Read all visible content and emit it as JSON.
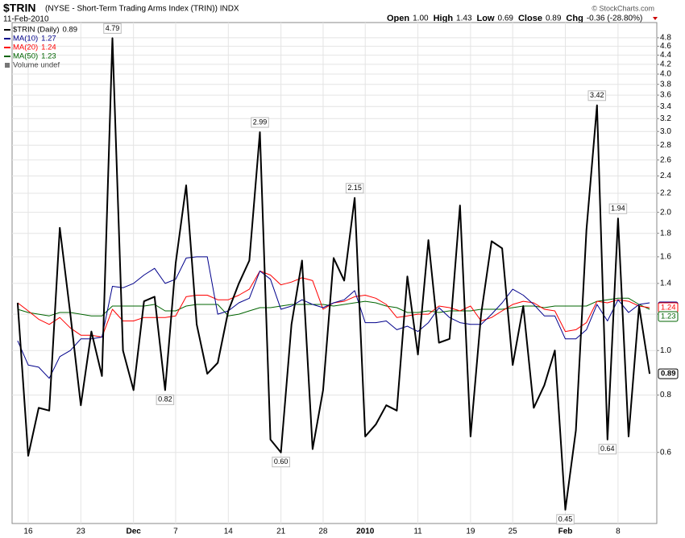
{
  "chart_data": {
    "type": "line",
    "title": "$TRIN",
    "subtitle": "(NYSE - Short-Term Trading Arms Index (TRIN)) INDX",
    "date": "11-Feb-2010",
    "quote": [
      {
        "label": "Open",
        "text": "1.00"
      },
      {
        "label": "High",
        "text": "1.43"
      },
      {
        "label": "Low",
        "text": "0.69"
      },
      {
        "label": "Close",
        "text": "0.89"
      },
      {
        "label": "Chg",
        "text": "-0.36 (-28.80%)"
      }
    ],
    "credit": "© StockCharts.com",
    "volume_legend": "Volume undef",
    "log_scale": true,
    "grid": true,
    "categories": [
      null,
      "16",
      null,
      null,
      null,
      null,
      "23",
      null,
      null,
      null,
      null,
      "Dec",
      null,
      null,
      null,
      "7",
      null,
      null,
      null,
      null,
      "14",
      null,
      null,
      null,
      null,
      "21",
      null,
      null,
      null,
      "28",
      null,
      null,
      null,
      "2010",
      null,
      null,
      null,
      null,
      "11",
      null,
      null,
      null,
      null,
      "19",
      null,
      null,
      null,
      "25",
      null,
      null,
      null,
      null,
      "Feb",
      null,
      null,
      null,
      null,
      "8",
      null,
      null,
      null
    ],
    "series": [
      {
        "name": "$TRIN (Daily)",
        "color": "#000000",
        "width": 2,
        "values": [
          1.27,
          0.59,
          0.75,
          0.74,
          1.85,
          1.2,
          0.76,
          1.1,
          0.88,
          4.79,
          1.0,
          0.82,
          1.28,
          1.31,
          0.82,
          1.55,
          2.29,
          1.14,
          0.89,
          0.94,
          1.22,
          1.4,
          1.57,
          2.99,
          0.64,
          0.6,
          1.14,
          1.57,
          0.61,
          0.82,
          1.59,
          1.42,
          2.15,
          0.65,
          0.69,
          0.76,
          0.74,
          1.45,
          0.98,
          1.74,
          1.04,
          1.06,
          2.07,
          0.65,
          1.2,
          1.73,
          1.67,
          0.93,
          1.25,
          0.75,
          0.84,
          1.0,
          0.45,
          0.67,
          1.83,
          3.42,
          0.64,
          1.94,
          0.65,
          1.25,
          0.89
        ],
        "value_labels": [
          null,
          null,
          null,
          null,
          null,
          null,
          null,
          null,
          null,
          "4.79",
          null,
          null,
          null,
          null,
          "0.82",
          null,
          null,
          null,
          null,
          null,
          null,
          null,
          null,
          "2.99",
          null,
          "0.60",
          null,
          null,
          null,
          null,
          null,
          null,
          "2.15",
          null,
          null,
          null,
          null,
          null,
          null,
          null,
          null,
          null,
          null,
          null,
          null,
          null,
          null,
          null,
          null,
          null,
          null,
          null,
          "0.45",
          null,
          null,
          "3.42",
          "0.64",
          "1.94",
          null,
          null,
          null
        ]
      },
      {
        "name": "MA(10)",
        "color": "#00008b",
        "width": 1,
        "values": [
          1.05,
          0.93,
          0.92,
          0.87,
          0.97,
          1.0,
          1.06,
          1.06,
          1.07,
          1.38,
          1.37,
          1.4,
          1.46,
          1.51,
          1.4,
          1.43,
          1.59,
          1.6,
          1.6,
          1.2,
          1.22,
          1.27,
          1.3,
          1.49,
          1.43,
          1.23,
          1.25,
          1.29,
          1.26,
          1.24,
          1.27,
          1.29,
          1.35,
          1.15,
          1.15,
          1.16,
          1.11,
          1.13,
          1.1,
          1.15,
          1.24,
          1.18,
          1.15,
          1.14,
          1.14,
          1.2,
          1.27,
          1.36,
          1.32,
          1.26,
          1.19,
          1.19,
          1.06,
          1.06,
          1.11,
          1.26,
          1.16,
          1.29,
          1.21,
          1.26,
          1.27
        ]
      },
      {
        "name": "MA(20)",
        "color": "#ff0000",
        "width": 1,
        "values": [
          1.27,
          1.22,
          1.17,
          1.14,
          1.18,
          1.12,
          1.08,
          1.08,
          1.07,
          1.23,
          1.16,
          1.16,
          1.18,
          1.18,
          1.18,
          1.19,
          1.31,
          1.32,
          1.32,
          1.29,
          1.29,
          1.32,
          1.36,
          1.49,
          1.46,
          1.39,
          1.41,
          1.44,
          1.42,
          1.23,
          1.27,
          1.28,
          1.31,
          1.32,
          1.3,
          1.26,
          1.18,
          1.19,
          1.2,
          1.2,
          1.25,
          1.24,
          1.22,
          1.25,
          1.16,
          1.18,
          1.22,
          1.26,
          1.28,
          1.27,
          1.23,
          1.22,
          1.1,
          1.11,
          1.15,
          1.28,
          1.27,
          1.29,
          1.28,
          1.25,
          1.24
        ]
      },
      {
        "name": "MA(50)",
        "color": "#006400",
        "width": 1,
        "values": [
          1.23,
          1.21,
          1.2,
          1.19,
          1.21,
          1.21,
          1.2,
          1.19,
          1.19,
          1.25,
          1.25,
          1.25,
          1.25,
          1.26,
          1.22,
          1.22,
          1.25,
          1.26,
          1.26,
          1.26,
          1.19,
          1.2,
          1.22,
          1.24,
          1.24,
          1.25,
          1.26,
          1.26,
          1.26,
          1.26,
          1.25,
          1.26,
          1.27,
          1.28,
          1.27,
          1.25,
          1.24,
          1.21,
          1.21,
          1.22,
          1.21,
          1.22,
          1.22,
          1.22,
          1.23,
          1.23,
          1.23,
          1.24,
          1.25,
          1.25,
          1.24,
          1.25,
          1.25,
          1.25,
          1.25,
          1.28,
          1.29,
          1.3,
          1.3,
          1.26,
          1.23
        ]
      }
    ],
    "ylim": [
      0.42,
      5.18
    ],
    "yticks": [
      0.6,
      0.8,
      {
        "value": 1,
        "label": "1.0"
      },
      1.2,
      1.4,
      1.6,
      1.8,
      {
        "value": 2,
        "label": "2.0"
      },
      2.2,
      2.4,
      2.6,
      2.8,
      {
        "value": 3,
        "label": "3.0"
      },
      3.2,
      3.4,
      3.6,
      3.8,
      {
        "value": 4,
        "label": "4.0"
      },
      4.2,
      4.4,
      4.6,
      4.8
    ]
  }
}
